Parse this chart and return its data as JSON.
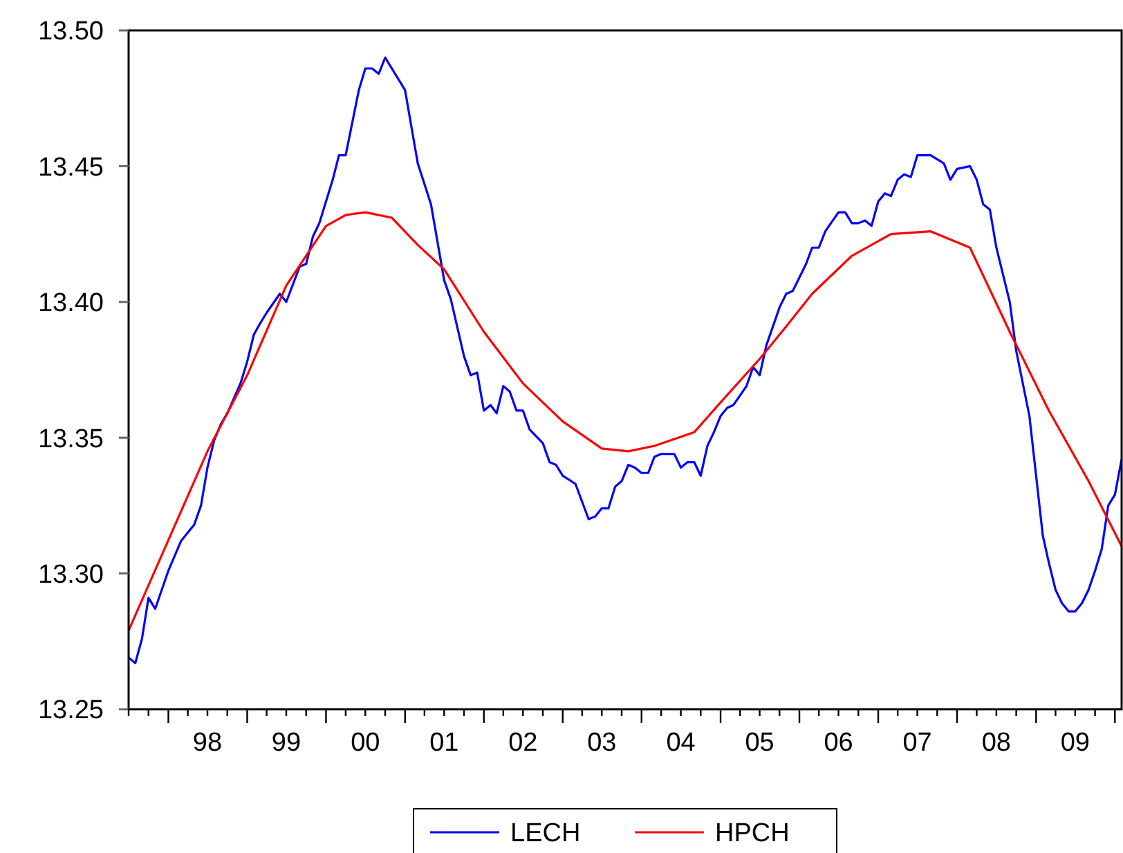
{
  "chart_data": {
    "type": "line",
    "xlim": [
      "1997-07",
      "2010-02"
    ],
    "ylim": [
      13.25,
      13.5
    ],
    "yticks": [
      {
        "value": 13.25,
        "label": "13.25"
      },
      {
        "value": 13.3,
        "label": "13.30"
      },
      {
        "value": 13.35,
        "label": "13.35"
      },
      {
        "value": 13.4,
        "label": "13.40"
      },
      {
        "value": 13.45,
        "label": "13.45"
      },
      {
        "value": 13.5,
        "label": "13.50"
      }
    ],
    "xticks": [
      {
        "value": "1997-07",
        "label": null
      },
      {
        "value": "1997-10",
        "label": null
      },
      {
        "value": "1998-01",
        "label": null
      },
      {
        "value": "1998-04",
        "label": null
      },
      {
        "value": "1998-07",
        "label": "98"
      },
      {
        "value": "1998-10",
        "label": null
      },
      {
        "value": "1999-01",
        "label": null
      },
      {
        "value": "1999-04",
        "label": null
      },
      {
        "value": "1999-07",
        "label": "99"
      },
      {
        "value": "1999-10",
        "label": null
      },
      {
        "value": "2000-01",
        "label": null
      },
      {
        "value": "2000-04",
        "label": null
      },
      {
        "value": "2000-07",
        "label": "00"
      },
      {
        "value": "2000-10",
        "label": null
      },
      {
        "value": "2001-01",
        "label": null
      },
      {
        "value": "2001-04",
        "label": null
      },
      {
        "value": "2001-07",
        "label": "01"
      },
      {
        "value": "2001-10",
        "label": null
      },
      {
        "value": "2002-01",
        "label": null
      },
      {
        "value": "2002-04",
        "label": null
      },
      {
        "value": "2002-07",
        "label": "02"
      },
      {
        "value": "2002-10",
        "label": null
      },
      {
        "value": "2003-01",
        "label": null
      },
      {
        "value": "2003-04",
        "label": null
      },
      {
        "value": "2003-07",
        "label": "03"
      },
      {
        "value": "2003-10",
        "label": null
      },
      {
        "value": "2004-01",
        "label": null
      },
      {
        "value": "2004-04",
        "label": null
      },
      {
        "value": "2004-07",
        "label": "04"
      },
      {
        "value": "2004-10",
        "label": null
      },
      {
        "value": "2005-01",
        "label": null
      },
      {
        "value": "2005-04",
        "label": null
      },
      {
        "value": "2005-07",
        "label": "05"
      },
      {
        "value": "2005-10",
        "label": null
      },
      {
        "value": "2006-01",
        "label": null
      },
      {
        "value": "2006-04",
        "label": null
      },
      {
        "value": "2006-07",
        "label": "06"
      },
      {
        "value": "2006-10",
        "label": null
      },
      {
        "value": "2007-01",
        "label": null
      },
      {
        "value": "2007-04",
        "label": null
      },
      {
        "value": "2007-07",
        "label": "07"
      },
      {
        "value": "2007-10",
        "label": null
      },
      {
        "value": "2008-01",
        "label": null
      },
      {
        "value": "2008-04",
        "label": null
      },
      {
        "value": "2008-07",
        "label": "08"
      },
      {
        "value": "2008-10",
        "label": null
      },
      {
        "value": "2009-01",
        "label": null
      },
      {
        "value": "2009-04",
        "label": null
      },
      {
        "value": "2009-07",
        "label": "09"
      },
      {
        "value": "2009-10",
        "label": null
      },
      {
        "value": "2010-01",
        "label": null
      }
    ],
    "grid": false,
    "legend": "bottom",
    "marker": "none",
    "line_style": "solid",
    "series": [
      {
        "name": "LECH",
        "color": "#0000ff",
        "x": [
          "1997-07",
          "1997-08",
          "1997-09",
          "1997-10",
          "1997-11",
          "1998-01",
          "1998-03",
          "1998-05",
          "1998-06",
          "1998-07",
          "1998-08",
          "1998-09",
          "1998-10",
          "1998-12",
          "1999-01",
          "1999-02",
          "1999-03",
          "1999-04",
          "1999-06",
          "1999-07",
          "1999-09",
          "1999-10",
          "1999-11",
          "1999-12",
          "2000-02",
          "2000-03",
          "2000-04",
          "2000-06",
          "2000-07",
          "2000-08",
          "2000-09",
          "2000-10",
          "2001-01",
          "2001-03",
          "2001-05",
          "2001-07",
          "2001-08",
          "2001-10",
          "2001-11",
          "2001-12",
          "2002-01",
          "2002-02",
          "2002-03",
          "2002-04",
          "2002-05",
          "2002-06",
          "2002-07",
          "2002-08",
          "2002-10",
          "2002-11",
          "2002-12",
          "2003-01",
          "2003-03",
          "2003-05",
          "2003-06",
          "2003-07",
          "2003-08",
          "2003-09",
          "2003-10",
          "2003-11",
          "2003-12",
          "2004-01",
          "2004-02",
          "2004-03",
          "2004-04",
          "2004-06",
          "2004-07",
          "2004-08",
          "2004-09",
          "2004-10",
          "2004-11",
          "2004-12",
          "2005-01",
          "2005-02",
          "2005-03",
          "2005-05",
          "2005-06",
          "2005-07",
          "2005-08",
          "2005-10",
          "2005-11",
          "2005-12",
          "2006-02",
          "2006-03",
          "2006-04",
          "2006-05",
          "2006-07",
          "2006-08",
          "2006-09",
          "2006-10",
          "2006-11",
          "2006-12",
          "2007-01",
          "2007-02",
          "2007-03",
          "2007-04",
          "2007-05",
          "2007-06",
          "2007-07",
          "2007-09",
          "2007-11",
          "2007-12",
          "2008-01",
          "2008-03",
          "2008-04",
          "2008-05",
          "2008-06",
          "2008-07",
          "2008-09",
          "2008-10",
          "2008-12",
          "2009-02",
          "2009-03",
          "2009-04",
          "2009-05",
          "2009-06",
          "2009-07",
          "2009-08",
          "2009-09",
          "2009-10",
          "2009-11",
          "2009-12",
          "2010-01",
          "2010-02"
        ],
        "values": [
          13.269,
          13.267,
          13.276,
          13.291,
          13.287,
          13.301,
          13.312,
          13.318,
          13.325,
          13.339,
          13.349,
          13.355,
          13.359,
          13.37,
          13.378,
          13.388,
          13.392,
          13.396,
          13.403,
          13.4,
          13.413,
          13.414,
          13.424,
          13.429,
          13.445,
          13.454,
          13.454,
          13.478,
          13.486,
          13.486,
          13.484,
          13.49,
          13.478,
          13.451,
          13.436,
          13.408,
          13.401,
          13.38,
          13.373,
          13.374,
          13.36,
          13.362,
          13.359,
          13.369,
          13.367,
          13.36,
          13.36,
          13.353,
          13.348,
          13.341,
          13.34,
          13.336,
          13.333,
          13.32,
          13.321,
          13.324,
          13.324,
          13.332,
          13.334,
          13.34,
          13.339,
          13.337,
          13.337,
          13.343,
          13.344,
          13.344,
          13.339,
          13.341,
          13.341,
          13.336,
          13.347,
          13.352,
          13.358,
          13.361,
          13.362,
          13.369,
          13.376,
          13.373,
          13.384,
          13.398,
          13.403,
          13.404,
          13.414,
          13.42,
          13.42,
          13.426,
          13.433,
          13.433,
          13.429,
          13.429,
          13.43,
          13.428,
          13.437,
          13.44,
          13.439,
          13.445,
          13.447,
          13.446,
          13.454,
          13.454,
          13.451,
          13.445,
          13.449,
          13.45,
          13.445,
          13.436,
          13.434,
          13.42,
          13.4,
          13.382,
          13.358,
          13.314,
          13.304,
          13.294,
          13.289,
          13.286,
          13.286,
          13.289,
          13.294,
          13.301,
          13.309,
          13.325,
          13.329,
          13.342
        ]
      },
      {
        "name": "HPCH",
        "color": "#ff0000",
        "x": [
          "1997-07",
          "1998-07",
          "1999-01",
          "1999-07",
          "2000-01",
          "2000-04",
          "2000-07",
          "2000-11",
          "2001-03",
          "2001-07",
          "2002-01",
          "2002-07",
          "2003-01",
          "2003-07",
          "2003-11",
          "2004-03",
          "2004-09",
          "2005-01",
          "2005-07",
          "2005-11",
          "2006-03",
          "2006-09",
          "2007-03",
          "2007-09",
          "2008-03",
          "2008-09",
          "2009-03",
          "2009-09",
          "2010-02"
        ],
        "values": [
          13.279,
          13.345,
          13.373,
          13.406,
          13.428,
          13.432,
          13.433,
          13.431,
          13.421,
          13.412,
          13.389,
          13.37,
          13.356,
          13.346,
          13.345,
          13.347,
          13.352,
          13.363,
          13.379,
          13.391,
          13.403,
          13.417,
          13.425,
          13.426,
          13.42,
          13.389,
          13.36,
          13.334,
          13.31
        ]
      }
    ]
  }
}
